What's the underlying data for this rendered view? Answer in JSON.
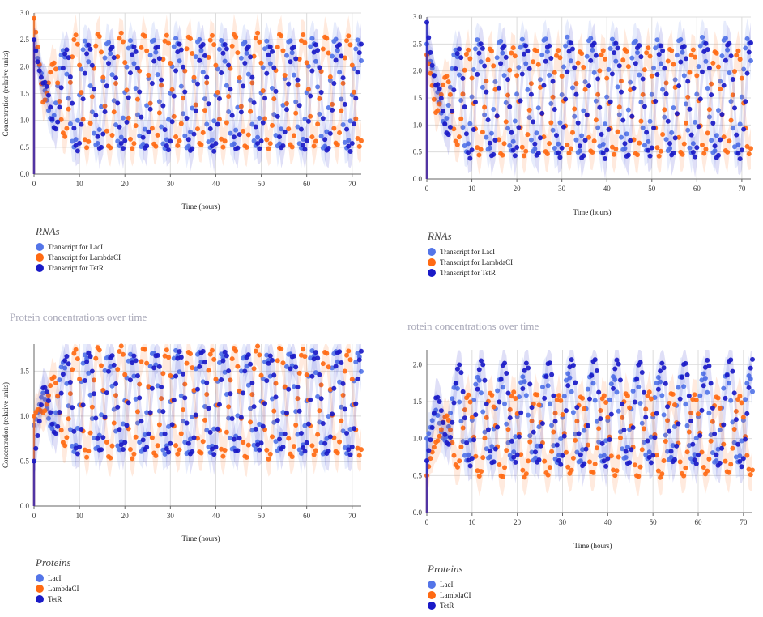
{
  "colors": {
    "laci": "#5475e8",
    "lambdaci": "#ff6a13",
    "tetr": "#1a1ac7"
  },
  "chart_data": [
    {
      "type": "scatter",
      "xlabel": "Time (hours)",
      "ylabel": "Concentration (relative units)",
      "xlim": [
        0,
        72
      ],
      "ylim": [
        0,
        3.0
      ],
      "xticks": [
        "0",
        "10",
        "20",
        "30",
        "40",
        "50",
        "60",
        "70"
      ],
      "yticks": [
        "0.0",
        "0.5",
        "1.0",
        "1.5",
        "2.0",
        "2.5",
        "3.0"
      ],
      "grid": true,
      "legend_title": "RNAs",
      "series": [
        {
          "name": "Transcript for LacI",
          "color_key": "laci",
          "start": 2.5,
          "low": 0.5,
          "high": 2.5,
          "period": 5.0,
          "phase": 0.0
        },
        {
          "name": "Transcript for LambdaCI",
          "color_key": "lambdaci",
          "start": 2.9,
          "low": 0.5,
          "high": 2.6,
          "period": 5.0,
          "phase": 2.1
        },
        {
          "name": "Transcript for TetR",
          "color_key": "tetr",
          "start": 2.5,
          "low": 0.45,
          "high": 2.4,
          "period": 5.0,
          "phase": 4.2
        }
      ]
    },
    {
      "type": "scatter",
      "xlabel": "Time (hours)",
      "ylabel": "",
      "xlim": [
        0,
        72
      ],
      "ylim": [
        0,
        3.0
      ],
      "xticks": [
        "0",
        "10",
        "20",
        "30",
        "40",
        "50",
        "60",
        "70"
      ],
      "yticks": [
        "0.0",
        "0.5",
        "1.0",
        "1.5",
        "2.0",
        "2.5",
        "3.0"
      ],
      "grid": true,
      "legend_title": "RNAs",
      "series": [
        {
          "name": "Transcript for LacI",
          "color_key": "laci",
          "start": 2.5,
          "low": 0.5,
          "high": 2.6,
          "period": 5.0,
          "phase": 0.0
        },
        {
          "name": "Transcript for LambdaCI",
          "color_key": "lambdaci",
          "start": 2.3,
          "low": 0.45,
          "high": 2.4,
          "period": 5.0,
          "phase": 2.1
        },
        {
          "name": "Transcript for TetR",
          "color_key": "tetr",
          "start": 2.9,
          "low": 0.4,
          "high": 2.5,
          "period": 5.0,
          "phase": 4.2
        }
      ]
    },
    {
      "type": "scatter",
      "title": "Protein concentrations over time",
      "xlabel": "Time (hours)",
      "ylabel": "Concentration (relative units)",
      "xlim": [
        0,
        72
      ],
      "ylim": [
        0,
        1.8
      ],
      "xticks": [
        "0",
        "10",
        "20",
        "30",
        "40",
        "50",
        "60",
        "70"
      ],
      "yticks": [
        "0.0",
        "0.5",
        "1.0",
        "1.5"
      ],
      "ytick_values": [
        0,
        0.5,
        1.0,
        1.5
      ],
      "grid": true,
      "legend_title": "Proteins",
      "series": [
        {
          "name": "LacI",
          "color_key": "laci",
          "start": 0.9,
          "low": 0.6,
          "high": 1.7,
          "period": 5.0,
          "phase": 0.0
        },
        {
          "name": "LambdaCI",
          "color_key": "lambdaci",
          "start": 1.0,
          "low": 0.55,
          "high": 1.75,
          "period": 5.0,
          "phase": 2.1
        },
        {
          "name": "TetR",
          "color_key": "tetr",
          "start": 0.5,
          "low": 0.6,
          "high": 1.7,
          "period": 5.0,
          "phase": 4.2
        }
      ]
    },
    {
      "type": "scatter",
      "title": "Protein concentrations over time",
      "xlabel": "Time (hours)",
      "ylabel": "",
      "xlim": [
        0,
        72
      ],
      "ylim": [
        0,
        2.2
      ],
      "xticks": [
        "0",
        "10",
        "20",
        "30",
        "40",
        "50",
        "60",
        "70"
      ],
      "yticks": [
        "0.0",
        "0.5",
        "1.0",
        "1.5",
        "2.0"
      ],
      "ytick_values": [
        0,
        0.5,
        1.0,
        1.5,
        2.0
      ],
      "grid": true,
      "legend_title": "Proteins",
      "series": [
        {
          "name": "LacI",
          "color_key": "laci",
          "start": 1.0,
          "low": 0.7,
          "high": 1.85,
          "period": 5.0,
          "phase": 0.0
        },
        {
          "name": "LambdaCI",
          "color_key": "lambdaci",
          "start": 0.5,
          "low": 0.5,
          "high": 1.6,
          "period": 5.0,
          "phase": 2.1
        },
        {
          "name": "TetR",
          "color_key": "tetr",
          "start": 0.7,
          "low": 0.65,
          "high": 2.05,
          "period": 5.0,
          "phase": 4.2
        }
      ]
    }
  ]
}
